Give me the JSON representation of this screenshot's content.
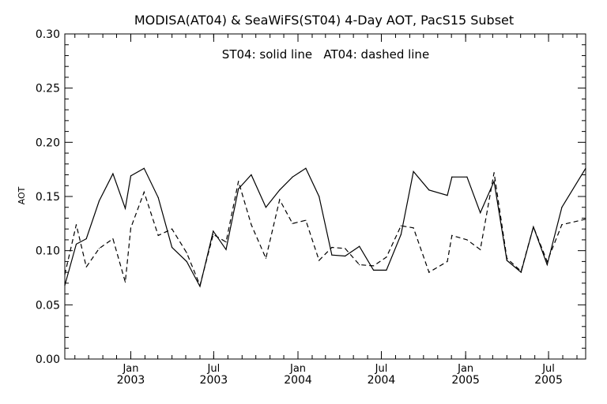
{
  "chart_data": {
    "type": "line",
    "title": "MODISA(AT04) & SeaWiFS(ST04) 4-Day AOT, PacS15 Subset",
    "annotation": "ST04: solid line   AT04: dashed line",
    "ylabel": "AOT",
    "xlabel": "",
    "ylim": [
      0.0,
      0.3
    ],
    "yticks": [
      "0.00",
      "0.05",
      "0.10",
      "0.15",
      "0.20",
      "0.25",
      "0.30"
    ],
    "xlim": [
      "2002-08-10",
      "2005-09-20"
    ],
    "xticks": [
      {
        "month": "Jan",
        "year": "2003",
        "date": "2003-01-01"
      },
      {
        "month": "Jul",
        "year": "2003",
        "date": "2003-07-01"
      },
      {
        "month": "Jan",
        "year": "2004",
        "date": "2004-01-01"
      },
      {
        "month": "Jul",
        "year": "2004",
        "date": "2004-07-01"
      },
      {
        "month": "Jan",
        "year": "2005",
        "date": "2005-01-01"
      },
      {
        "month": "Jul",
        "year": "2005",
        "date": "2005-07-01"
      }
    ],
    "grid": false,
    "series": [
      {
        "name": "ST04",
        "style": "solid",
        "points": [
          [
            "2002-08-10",
            0.068
          ],
          [
            "2002-09-04",
            0.106
          ],
          [
            "2002-09-26",
            0.111
          ],
          [
            "2002-10-24",
            0.146
          ],
          [
            "2002-11-23",
            0.171
          ],
          [
            "2002-12-20",
            0.139
          ],
          [
            "2003-01-01",
            0.169
          ],
          [
            "2003-01-30",
            0.176
          ],
          [
            "2003-03-02",
            0.149
          ],
          [
            "2003-04-01",
            0.103
          ],
          [
            "2003-05-03",
            0.09
          ],
          [
            "2003-06-01",
            0.067
          ],
          [
            "2003-06-30",
            0.118
          ],
          [
            "2003-07-28",
            0.101
          ],
          [
            "2003-08-24",
            0.157
          ],
          [
            "2003-09-21",
            0.17
          ],
          [
            "2003-10-23",
            0.14
          ],
          [
            "2003-11-22",
            0.156
          ],
          [
            "2003-12-20",
            0.168
          ],
          [
            "2004-01-18",
            0.176
          ],
          [
            "2004-02-16",
            0.15
          ],
          [
            "2004-03-15",
            0.096
          ],
          [
            "2004-04-13",
            0.095
          ],
          [
            "2004-05-14",
            0.104
          ],
          [
            "2004-06-14",
            0.082
          ],
          [
            "2004-07-12",
            0.082
          ],
          [
            "2004-08-13",
            0.115
          ],
          [
            "2004-09-09",
            0.173
          ],
          [
            "2004-10-13",
            0.156
          ],
          [
            "2004-11-22",
            0.151
          ],
          [
            "2004-12-02",
            0.168
          ],
          [
            "2005-01-04",
            0.168
          ],
          [
            "2005-02-02",
            0.135
          ],
          [
            "2005-03-04",
            0.164
          ],
          [
            "2005-04-01",
            0.091
          ],
          [
            "2005-05-02",
            0.08
          ],
          [
            "2005-05-29",
            0.122
          ],
          [
            "2005-06-28",
            0.087
          ],
          [
            "2005-07-30",
            0.14
          ],
          [
            "2005-09-20",
            0.176
          ]
        ]
      },
      {
        "name": "AT04",
        "style": "dashed",
        "points": [
          [
            "2002-08-10",
            0.078
          ],
          [
            "2002-09-04",
            0.124
          ],
          [
            "2002-09-26",
            0.085
          ],
          [
            "2002-10-24",
            0.102
          ],
          [
            "2002-11-23",
            0.111
          ],
          [
            "2002-12-20",
            0.071
          ],
          [
            "2003-01-01",
            0.121
          ],
          [
            "2003-01-30",
            0.154
          ],
          [
            "2003-03-02",
            0.114
          ],
          [
            "2003-04-01",
            0.12
          ],
          [
            "2003-05-03",
            0.098
          ],
          [
            "2003-06-01",
            0.068
          ],
          [
            "2003-06-30",
            0.115
          ],
          [
            "2003-07-28",
            0.108
          ],
          [
            "2003-08-24",
            0.164
          ],
          [
            "2003-09-21",
            0.124
          ],
          [
            "2003-10-23",
            0.093
          ],
          [
            "2003-11-22",
            0.147
          ],
          [
            "2003-12-20",
            0.125
          ],
          [
            "2004-01-18",
            0.128
          ],
          [
            "2004-02-16",
            0.091
          ],
          [
            "2004-03-15",
            0.103
          ],
          [
            "2004-04-13",
            0.102
          ],
          [
            "2004-05-14",
            0.087
          ],
          [
            "2004-06-14",
            0.086
          ],
          [
            "2004-07-12",
            0.094
          ],
          [
            "2004-08-13",
            0.123
          ],
          [
            "2004-09-09",
            0.121
          ],
          [
            "2004-10-13",
            0.08
          ],
          [
            "2004-11-22",
            0.09
          ],
          [
            "2004-12-02",
            0.114
          ],
          [
            "2005-01-04",
            0.11
          ],
          [
            "2005-02-02",
            0.101
          ],
          [
            "2005-03-04",
            0.172
          ],
          [
            "2005-04-01",
            0.093
          ],
          [
            "2005-05-02",
            0.081
          ],
          [
            "2005-05-29",
            0.122
          ],
          [
            "2005-06-28",
            0.09
          ],
          [
            "2005-07-30",
            0.124
          ],
          [
            "2005-09-20",
            0.129
          ]
        ]
      }
    ]
  }
}
